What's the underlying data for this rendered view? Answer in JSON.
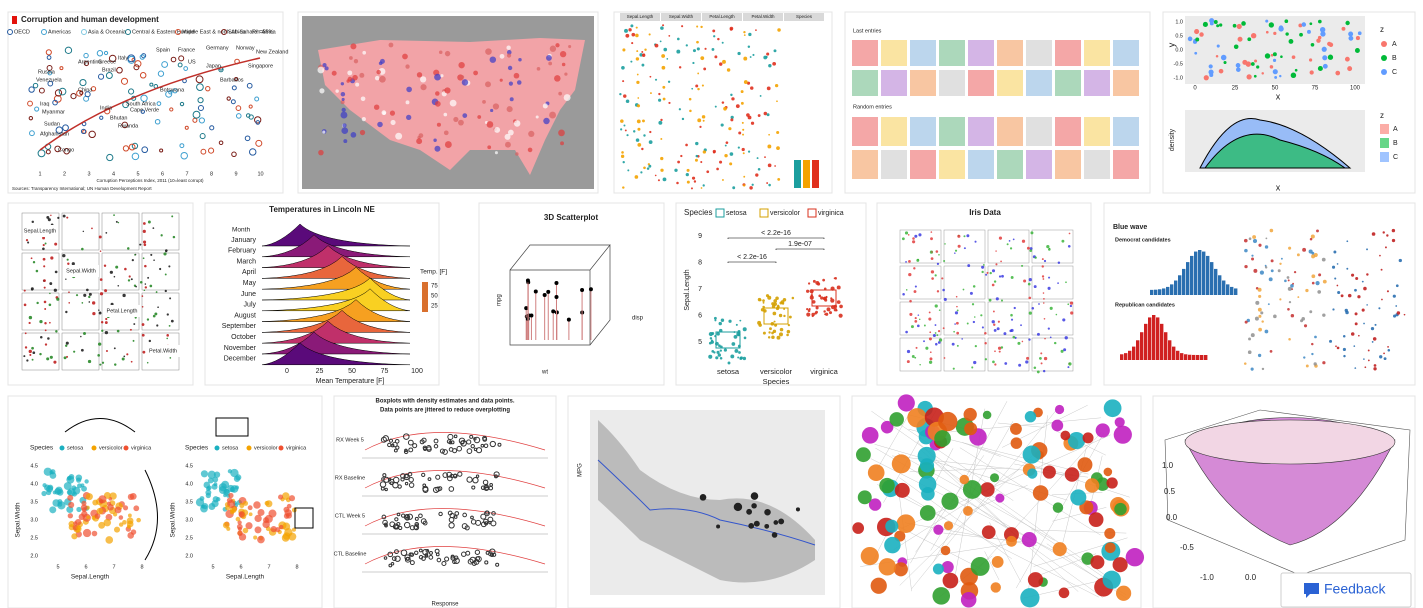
{
  "tiles": [
    {
      "title": "Corruption and human development",
      "legend": [
        "OECD",
        "Americas",
        "Asia & Oceania",
        "Central & Eastern Europe",
        "Middle East & north Africa",
        "Sub-Saharan Africa",
        "R² =56%"
      ],
      "countries": [
        "Russia",
        "Venezuela",
        "Iraq",
        "Myanmar",
        "Sudan",
        "Afghanistan",
        "Congo",
        "Argentina",
        "Greece",
        "Brazil",
        "Italy",
        "China",
        "India",
        "Bhutan",
        "Rwanda",
        "South Africa",
        "Cape Verde",
        "Botswana",
        "Spain",
        "France",
        "US",
        "Germany",
        "Norway",
        "New Zealand",
        "Japan",
        "Singapore",
        "Barbados"
      ],
      "x_ticks": [
        "1",
        "2",
        "3",
        "4",
        "5",
        "6",
        "7",
        "8",
        "9",
        "10"
      ],
      "x_label": "Corruption Perceptions Index, 2011 (10=least corrupt)",
      "source": "Sources: Transparency International; UN Human Development Report"
    },
    {},
    {
      "headers": [
        "Sepal.Length",
        "Sepal.Width",
        "Petal.Length",
        "Petal.Width",
        "Species"
      ]
    },
    {
      "sections": [
        "Last entries",
        "Random entries"
      ]
    },
    {
      "y_label": "y",
      "x_label": "x",
      "legend_title": "z",
      "legend": [
        "A",
        "B",
        "C"
      ],
      "density_label": "density",
      "x_ticks": [
        "0",
        "25",
        "50",
        "75",
        "100"
      ],
      "y_ticks": [
        "1.0",
        "0.5",
        "0.0",
        "-0.5",
        "-1.0"
      ]
    },
    {
      "labels": [
        "Sepal.Length",
        "Sepal.Width",
        "Petal.Length",
        "Petal.Width"
      ]
    },
    {
      "title": "Temperatures in Lincoln NE",
      "y_label": "Month",
      "months": [
        "January",
        "February",
        "March",
        "April",
        "May",
        "June",
        "July",
        "August",
        "September",
        "October",
        "November",
        "December"
      ],
      "legend_title": "Temp. [F]",
      "legend_ticks": [
        "75",
        "50",
        "25"
      ],
      "x_ticks": [
        "0",
        "25",
        "50",
        "75",
        "100"
      ],
      "x_label": "Mean Temperature [F]"
    },
    {
      "title": "3D Scatterplot",
      "axes": [
        "mpg",
        "wt",
        "disp"
      ]
    },
    {
      "legend_title": "Species",
      "legend": [
        "setosa",
        "versicolor",
        "virginica"
      ],
      "y_label": "Sepal.Length",
      "y_ticks": [
        "9",
        "8",
        "7",
        "6",
        "5"
      ],
      "p_values": [
        "< 2.2e-16",
        "1.9e-07",
        "< 2.2e-16"
      ],
      "x_label": "Species"
    },
    {
      "title": "Iris Data"
    },
    {
      "title": "Blue wave",
      "panels": [
        "Democrat candidates",
        "Republican candidates"
      ]
    },
    {
      "legend_title": "Species",
      "legend": [
        "setosa",
        "versicolor",
        "virginica"
      ],
      "y_label": "Sepal.Width",
      "x_label": "Sepal.Length",
      "y_ticks": [
        "4.5",
        "4.0",
        "3.5",
        "3.0",
        "2.5",
        "2.0"
      ],
      "x_ticks": [
        "5",
        "6",
        "7",
        "8"
      ]
    },
    {
      "title": [
        "Boxplots with density estimates and data points.",
        "Data points are jittered to reduce overplotting"
      ],
      "groups": [
        "RX Week 5",
        "RX Baseline",
        "CTL Week 5",
        "CTL Baseline"
      ],
      "x_label": "Response"
    },
    {
      "y_label": "MPG"
    },
    {},
    {
      "ticks": [
        "1.0",
        "0.5",
        "0.0",
        "-0.5",
        "-1.0",
        "0.0",
        "0.5"
      ]
    }
  ],
  "feedback": "Feedback"
}
